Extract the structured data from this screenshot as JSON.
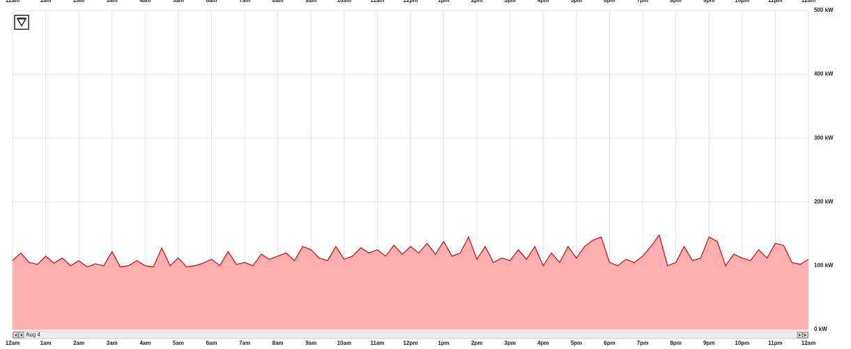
{
  "chart_data": {
    "type": "area",
    "x_label_date": "Aug 4",
    "xlim": [
      0,
      24
    ],
    "xticks": [
      {
        "value": 0,
        "label": "12am"
      },
      {
        "value": 1,
        "label": "1am"
      },
      {
        "value": 2,
        "label": "2am"
      },
      {
        "value": 3,
        "label": "3am"
      },
      {
        "value": 4,
        "label": "4am"
      },
      {
        "value": 5,
        "label": "5am"
      },
      {
        "value": 6,
        "label": "6am"
      },
      {
        "value": 7,
        "label": "7am"
      },
      {
        "value": 8,
        "label": "8am"
      },
      {
        "value": 9,
        "label": "9am"
      },
      {
        "value": 10,
        "label": "10am"
      },
      {
        "value": 11,
        "label": "11am"
      },
      {
        "value": 12,
        "label": "12pm"
      },
      {
        "value": 13,
        "label": "1pm"
      },
      {
        "value": 14,
        "label": "2pm"
      },
      {
        "value": 15,
        "label": "3pm"
      },
      {
        "value": 16,
        "label": "4pm"
      },
      {
        "value": 17,
        "label": "5pm"
      },
      {
        "value": 18,
        "label": "6pm"
      },
      {
        "value": 19,
        "label": "7pm"
      },
      {
        "value": 20,
        "label": "8pm"
      },
      {
        "value": 21,
        "label": "9pm"
      },
      {
        "value": 22,
        "label": "10pm"
      },
      {
        "value": 23,
        "label": "11pm"
      },
      {
        "value": 24,
        "label": "12am"
      }
    ],
    "ylim": [
      0,
      500
    ],
    "yticks": [
      {
        "value": 0,
        "label": "0 kW"
      },
      {
        "value": 100,
        "label": "100 kW"
      },
      {
        "value": 200,
        "label": "200 kW"
      },
      {
        "value": 300,
        "label": "300 kW"
      },
      {
        "value": 400,
        "label": "400 kW"
      },
      {
        "value": 500,
        "label": "500 kW"
      }
    ],
    "grid": true,
    "color": "#e00000",
    "fill": "#ffb0b0",
    "x": [
      0,
      0.25,
      0.5,
      0.75,
      1,
      1.25,
      1.5,
      1.75,
      2,
      2.25,
      2.5,
      2.75,
      3,
      3.25,
      3.5,
      3.75,
      4,
      4.25,
      4.5,
      4.75,
      5,
      5.25,
      5.5,
      5.75,
      6,
      6.25,
      6.5,
      6.75,
      7,
      7.25,
      7.5,
      7.75,
      8,
      8.25,
      8.5,
      8.75,
      9,
      9.25,
      9.5,
      9.75,
      10,
      10.25,
      10.5,
      10.75,
      11,
      11.25,
      11.5,
      11.75,
      12,
      12.25,
      12.5,
      12.75,
      13,
      13.25,
      13.5,
      13.75,
      14,
      14.25,
      14.5,
      14.75,
      15,
      15.25,
      15.5,
      15.75,
      16,
      16.25,
      16.5,
      16.75,
      17,
      17.25,
      17.5,
      17.75,
      18,
      18.25,
      18.5,
      18.75,
      19,
      19.25,
      19.5,
      19.75,
      20,
      20.25,
      20.5,
      20.75,
      21,
      21.25,
      21.5,
      21.75,
      22,
      22.25,
      22.5,
      22.75,
      23,
      23.25,
      23.5,
      23.75,
      24
    ],
    "values": [
      108,
      120,
      105,
      102,
      115,
      104,
      112,
      100,
      108,
      98,
      103,
      100,
      122,
      98,
      100,
      108,
      100,
      98,
      128,
      100,
      112,
      98,
      100,
      104,
      110,
      100,
      122,
      102,
      105,
      100,
      118,
      110,
      115,
      120,
      108,
      130,
      125,
      112,
      108,
      130,
      110,
      115,
      128,
      120,
      125,
      115,
      132,
      118,
      130,
      120,
      135,
      118,
      138,
      115,
      120,
      145,
      110,
      130,
      105,
      112,
      108,
      125,
      110,
      130,
      100,
      120,
      105,
      130,
      112,
      130,
      140,
      145,
      105,
      100,
      110,
      105,
      115,
      130,
      148,
      100,
      105,
      130,
      108,
      112,
      145,
      138,
      100,
      118,
      112,
      108,
      125,
      112,
      135,
      132,
      105,
      102,
      110
    ]
  }
}
